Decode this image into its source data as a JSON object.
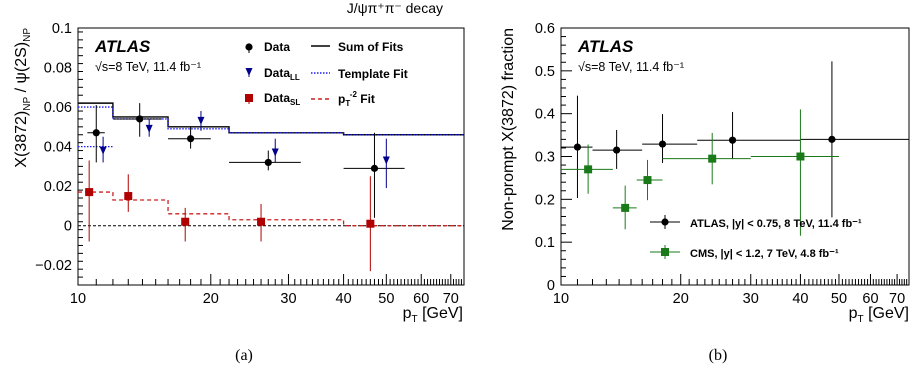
{
  "chart_data": [
    {
      "type": "scatter",
      "id": "a",
      "caption": "(a)",
      "top_label": "J/ψπ⁺π⁻ decay",
      "experiment": "ATLAS",
      "energy_line": "√s=8 TeV, 11.4 fb⁻¹",
      "xlabel": "p_T [GeV]",
      "ylabel": "X(3872)_NP / ψ(2S)_NP",
      "x_scale": "log",
      "xlim": [
        10,
        75
      ],
      "ylim": [
        -0.03,
        0.1
      ],
      "x_ticks": [
        10,
        20,
        30,
        40,
        50,
        60,
        70
      ],
      "y_ticks": [
        -0.02,
        0,
        0.02,
        0.04,
        0.06,
        0.08,
        0.1
      ],
      "y_tick_labels": [
        "−0.02",
        "0",
        "0.02",
        "0.04",
        "0.06",
        "0.08",
        "0.1"
      ],
      "legend": {
        "data": "Data",
        "data_ll": "Data_LL",
        "data_sl": "Data_SL",
        "sum_fits": "Sum of Fits",
        "template_fit": "Template Fit",
        "pt2_fit": "p_T^-2 Fit"
      },
      "series": [
        {
          "name": "Data",
          "color": "#000000",
          "marker": "circle",
          "points": [
            {
              "x": 11,
              "y": 0.047,
              "ylo": 0.032,
              "yhi": 0.061,
              "xerr": [
                10.5,
                11.5
              ]
            },
            {
              "x": 13.8,
              "y": 0.054,
              "ylo": 0.045,
              "yhi": 0.062,
              "xerr": [
                12,
                15.5
              ]
            },
            {
              "x": 18,
              "y": 0.044,
              "ylo": 0.039,
              "yhi": 0.05,
              "xerr": [
                16,
                20
              ]
            },
            {
              "x": 27,
              "y": 0.032,
              "ylo": 0.028,
              "yhi": 0.038,
              "xerr": [
                22,
                32
              ]
            },
            {
              "x": 47,
              "y": 0.029,
              "ylo": 0.004,
              "yhi": 0.047,
              "xerr": [
                40,
                55
              ]
            }
          ]
        },
        {
          "name": "Data_LL",
          "color": "#00008b",
          "marker": "triangle-down",
          "points": [
            {
              "x": 11.4,
              "y": 0.038,
              "ylo": 0.032,
              "yhi": 0.045
            },
            {
              "x": 14.5,
              "y": 0.049,
              "ylo": 0.045,
              "yhi": 0.054
            },
            {
              "x": 19,
              "y": 0.053,
              "ylo": 0.048,
              "yhi": 0.058
            },
            {
              "x": 28,
              "y": 0.037,
              "ylo": 0.032,
              "yhi": 0.044
            },
            {
              "x": 50,
              "y": 0.033,
              "ylo": 0.019,
              "yhi": 0.044
            }
          ]
        },
        {
          "name": "Data_SL",
          "color": "#b00000",
          "marker": "square",
          "points": [
            {
              "x": 10.6,
              "y": 0.017,
              "ylo": -0.008,
              "yhi": 0.033
            },
            {
              "x": 13,
              "y": 0.015,
              "ylo": 0.007,
              "yhi": 0.026
            },
            {
              "x": 17.5,
              "y": 0.002,
              "ylo": -0.008,
              "yhi": 0.009
            },
            {
              "x": 26,
              "y": 0.002,
              "ylo": -0.008,
              "yhi": 0.011
            },
            {
              "x": 46,
              "y": 0.001,
              "ylo": -0.023,
              "yhi": 0.025
            }
          ]
        }
      ],
      "step_series": [
        {
          "name": "Sum of Fits",
          "color": "#000000",
          "dash": "solid",
          "edges": [
            10,
            12,
            16,
            22,
            40,
            75
          ],
          "values": [
            0.062,
            0.055,
            0.05,
            0.047,
            0.046
          ]
        },
        {
          "name": "Template Fit",
          "color": "#1a1aff",
          "dash": "dotted",
          "edges": [
            10,
            12,
            16,
            22,
            40,
            75
          ],
          "values": [
            0.06,
            0.054,
            0.049,
            0.047,
            0.046
          ]
        },
        {
          "name": "Template Fit (lower)",
          "color": "#1a1aff",
          "dash": "dotted",
          "edges": [
            10,
            12
          ],
          "values": [
            0.04
          ]
        },
        {
          "name": "p_T^-2 Fit",
          "color": "#cc2020",
          "dash": "dashed",
          "edges": [
            10,
            12,
            16,
            22,
            40,
            75
          ],
          "values": [
            0.017,
            0.013,
            0.006,
            0.003,
            0.0
          ]
        }
      ],
      "zero_line": true
    },
    {
      "type": "scatter",
      "id": "b",
      "caption": "(b)",
      "experiment": "ATLAS",
      "energy_line": "√s=8 TeV, 11.4 fb⁻¹",
      "xlabel": "p_T [GeV]",
      "ylabel": "Non-prompt X(3872) fraction",
      "x_scale": "log",
      "xlim": [
        10,
        75
      ],
      "ylim": [
        0,
        0.6
      ],
      "x_ticks": [
        10,
        20,
        30,
        40,
        50,
        60,
        70
      ],
      "y_ticks": [
        0,
        0.1,
        0.2,
        0.3,
        0.4,
        0.5,
        0.6
      ],
      "y_tick_labels": [
        "0",
        "0.1",
        "0.2",
        "0.3",
        "0.4",
        "0.5",
        "0.6"
      ],
      "series": [
        {
          "name": "ATLAS, |y| < 0.75, 8 TeV, 11.4 fb⁻¹",
          "color": "#000000",
          "marker": "circle",
          "points": [
            {
              "x": 11,
              "y": 0.322,
              "ylo": 0.203,
              "yhi": 0.442,
              "xerr": [
                10,
                12
              ]
            },
            {
              "x": 13.8,
              "y": 0.315,
              "ylo": 0.271,
              "yhi": 0.362,
              "xerr": [
                12,
                16
              ]
            },
            {
              "x": 18,
              "y": 0.329,
              "ylo": 0.285,
              "yhi": 0.399,
              "xerr": [
                16,
                22
              ]
            },
            {
              "x": 27,
              "y": 0.338,
              "ylo": 0.294,
              "yhi": 0.404,
              "xerr": [
                22,
                40
              ]
            },
            {
              "x": 48,
              "y": 0.34,
              "ylo": 0.158,
              "yhi": 0.522,
              "xerr": [
                40,
                75
              ]
            }
          ]
        },
        {
          "name": "CMS, |y| < 1.2, 7 TeV, 4.8 fb⁻¹",
          "color": "#1a7a1a",
          "marker": "square",
          "points": [
            {
              "x": 11.7,
              "y": 0.27,
              "ylo": 0.213,
              "yhi": 0.328,
              "xerr": [
                10,
                13.5
              ]
            },
            {
              "x": 14.5,
              "y": 0.18,
              "ylo": 0.13,
              "yhi": 0.232,
              "xerr": [
                13.5,
                15.5
              ]
            },
            {
              "x": 16.5,
              "y": 0.245,
              "ylo": 0.198,
              "yhi": 0.292,
              "xerr": [
                15.5,
                18
              ]
            },
            {
              "x": 24,
              "y": 0.295,
              "ylo": 0.235,
              "yhi": 0.355,
              "xerr": [
                18,
                30
              ]
            },
            {
              "x": 40,
              "y": 0.3,
              "ylo": 0.115,
              "yhi": 0.41,
              "xerr": [
                30,
                50
              ]
            }
          ]
        }
      ]
    }
  ]
}
